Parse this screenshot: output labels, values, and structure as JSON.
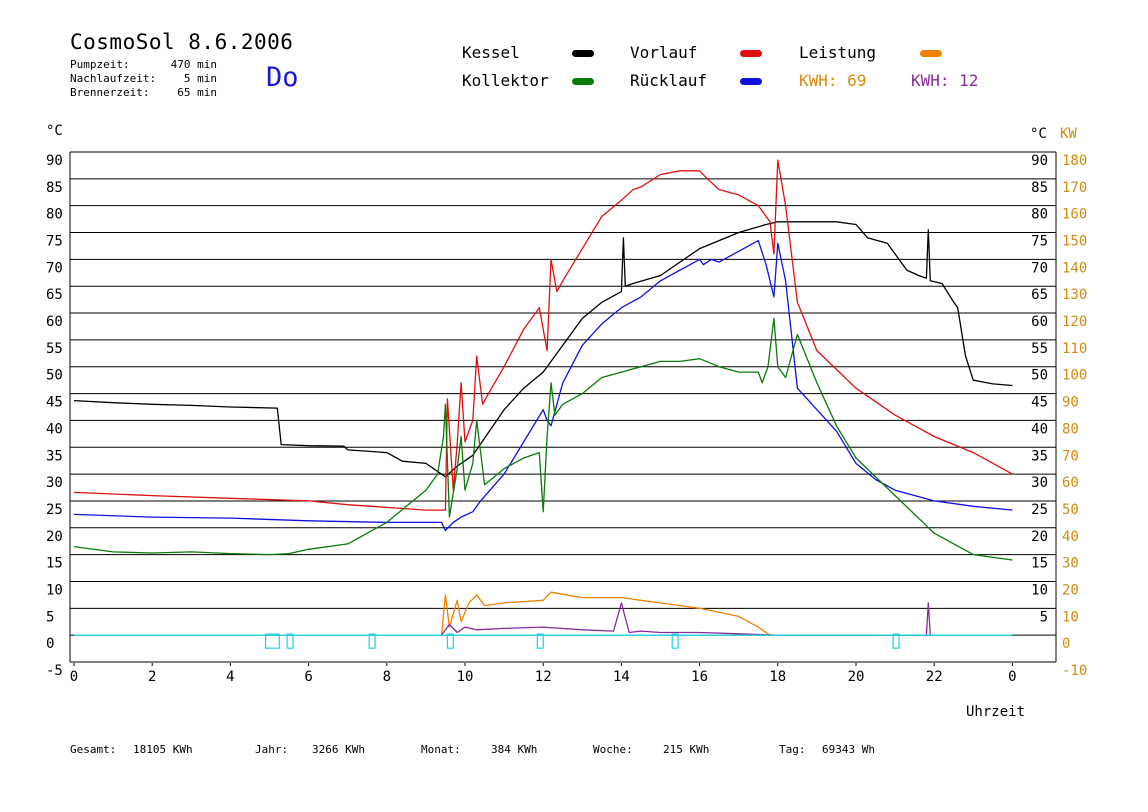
{
  "header": {
    "title": "CosmoSol 8.6.2006",
    "stats": [
      {
        "label": "Pumpzeit:",
        "value": "470 min"
      },
      {
        "label": "Nachlaufzeit:",
        "value": "5 min"
      },
      {
        "label": "Brennerzeit:",
        "value": "65 min"
      }
    ],
    "day": "Do"
  },
  "legend": {
    "kessel": {
      "label": "Kessel",
      "color": "#000000"
    },
    "kollektor": {
      "label": "Kollektor",
      "color": "#0a7a0a"
    },
    "vorlauf": {
      "label": "Vorlauf",
      "color": "#e01010"
    },
    "ruecklauf": {
      "label": "Rücklauf",
      "color": "#1010e0"
    },
    "leistung": {
      "label": "Leistung",
      "color": "#f08000"
    },
    "kwh1": {
      "label": "KWH: 69",
      "color": "#e08a10"
    },
    "kwh2": {
      "label": "KWH: 12",
      "color": "#8a2a9a"
    }
  },
  "axes": {
    "left_unit": "°C",
    "right_unit_c": "°C",
    "right_unit_kw": "KW",
    "xlabel": "Uhrzeit",
    "left_ticks": [
      "90",
      "85",
      "80",
      "75",
      "70",
      "65",
      "60",
      "55",
      "50",
      "45",
      "40",
      "35",
      "30",
      "25",
      "20",
      "15",
      "10",
      "5",
      "0",
      "-5"
    ],
    "right_c_ticks": [
      "90",
      "85",
      "80",
      "75",
      "70",
      "65",
      "60",
      "55",
      "50",
      "45",
      "40",
      "35",
      "30",
      "25",
      "20",
      "15",
      "10",
      "5"
    ],
    "right_kw_ticks": [
      "180",
      "170",
      "160",
      "150",
      "140",
      "130",
      "120",
      "110",
      "100",
      "90",
      "80",
      "70",
      "60",
      "50",
      "40",
      "30",
      "20",
      "10",
      "0",
      "-10"
    ],
    "x_ticks": [
      "0",
      "2",
      "4",
      "6",
      "8",
      "10",
      "12",
      "14",
      "16",
      "18",
      "20",
      "22",
      "0"
    ]
  },
  "footer": [
    {
      "label": "Gesamt:",
      "value": "18105 KWh"
    },
    {
      "label": "Jahr:",
      "value": "3266 KWh"
    },
    {
      "label": "Monat:",
      "value": "384 KWh"
    },
    {
      "label": "Woche:",
      "value": "215 KWh"
    },
    {
      "label": "Tag:",
      "value": "69343 Wh"
    }
  ],
  "chart_data": {
    "type": "line",
    "title": "CosmoSol 8.6.2006",
    "xlabel": "Uhrzeit",
    "ylabel": "°C",
    "xlim": [
      0,
      24
    ],
    "ylim": [
      -5,
      90
    ],
    "y2lim": [
      -10,
      180
    ],
    "grid": true,
    "legend_position": "top",
    "series": [
      {
        "name": "Kessel",
        "color": "#000000",
        "points": [
          [
            0,
            43.7
          ],
          [
            1,
            43.3
          ],
          [
            2,
            43.0
          ],
          [
            3,
            42.8
          ],
          [
            4,
            42.5
          ],
          [
            5.2,
            42.3
          ],
          [
            5.3,
            35.5
          ],
          [
            6,
            35.3
          ],
          [
            6.9,
            35.2
          ],
          [
            7,
            34.5
          ],
          [
            8,
            34
          ],
          [
            8.4,
            32.4
          ],
          [
            9,
            32
          ],
          [
            9.5,
            29.5
          ],
          [
            9.8,
            31.5
          ],
          [
            10.2,
            33.5
          ],
          [
            11,
            42
          ],
          [
            11.5,
            46
          ],
          [
            12,
            49
          ],
          [
            12.5,
            54
          ],
          [
            13,
            59
          ],
          [
            13.5,
            62
          ],
          [
            14,
            64
          ],
          [
            14.05,
            74
          ],
          [
            14.1,
            65
          ],
          [
            14.3,
            65.5
          ],
          [
            15,
            67
          ],
          [
            16,
            72
          ],
          [
            16.5,
            73.5
          ],
          [
            17,
            75
          ],
          [
            17.7,
            76.5
          ],
          [
            18,
            77
          ],
          [
            18.5,
            77
          ],
          [
            19,
            77
          ],
          [
            19.5,
            77
          ],
          [
            20,
            76.5
          ],
          [
            20.3,
            74
          ],
          [
            20.8,
            73
          ],
          [
            21,
            71
          ],
          [
            21.3,
            68
          ],
          [
            21.6,
            67
          ],
          [
            21.8,
            66.5
          ],
          [
            21.85,
            75.5
          ],
          [
            21.9,
            66
          ],
          [
            22.2,
            65.5
          ],
          [
            22.5,
            62
          ],
          [
            22.6,
            61
          ],
          [
            22.8,
            52
          ],
          [
            23,
            47.5
          ],
          [
            23.5,
            46.8
          ],
          [
            24,
            46.5
          ]
        ]
      },
      {
        "name": "Vorlauf",
        "color": "#e01010",
        "points": [
          [
            0,
            26.6
          ],
          [
            2,
            26.0
          ],
          [
            4,
            25.5
          ],
          [
            6,
            25
          ],
          [
            7,
            24.3
          ],
          [
            8,
            23.8
          ],
          [
            9,
            23.3
          ],
          [
            9.5,
            23.3
          ],
          [
            9.55,
            44
          ],
          [
            9.7,
            27
          ],
          [
            9.8,
            35.7
          ],
          [
            9.9,
            47
          ],
          [
            10,
            36
          ],
          [
            10.2,
            40
          ],
          [
            10.3,
            52
          ],
          [
            10.45,
            43
          ],
          [
            10.6,
            45
          ],
          [
            11,
            50
          ],
          [
            11.5,
            57
          ],
          [
            11.9,
            61
          ],
          [
            12.1,
            53
          ],
          [
            12.2,
            70
          ],
          [
            12.35,
            64
          ],
          [
            12.5,
            66
          ],
          [
            13,
            72
          ],
          [
            13.5,
            78
          ],
          [
            14,
            81
          ],
          [
            14.3,
            83
          ],
          [
            14.5,
            83.5
          ],
          [
            15,
            85.8
          ],
          [
            15.5,
            86.5
          ],
          [
            16,
            86.5
          ],
          [
            16.2,
            85
          ],
          [
            16.5,
            83
          ],
          [
            17,
            82
          ],
          [
            17.5,
            80
          ],
          [
            17.8,
            77
          ],
          [
            17.9,
            71
          ],
          [
            18,
            88.5
          ],
          [
            18.2,
            80
          ],
          [
            18.5,
            62
          ],
          [
            19,
            53
          ],
          [
            20,
            46
          ],
          [
            21,
            41
          ],
          [
            22,
            37
          ],
          [
            23,
            34
          ],
          [
            24,
            30
          ]
        ]
      },
      {
        "name": "Rücklauf",
        "color": "#1010e0",
        "points": [
          [
            0,
            22.5
          ],
          [
            2,
            22
          ],
          [
            4,
            21.8
          ],
          [
            6,
            21.3
          ],
          [
            8,
            21
          ],
          [
            9.4,
            21
          ],
          [
            9.5,
            19.5
          ],
          [
            9.7,
            21
          ],
          [
            9.9,
            22
          ],
          [
            10.2,
            23
          ],
          [
            10.4,
            25
          ],
          [
            11,
            30
          ],
          [
            11.5,
            36
          ],
          [
            12,
            42
          ],
          [
            12.1,
            40
          ],
          [
            12.2,
            39
          ],
          [
            12.5,
            47
          ],
          [
            13,
            54
          ],
          [
            13.5,
            58
          ],
          [
            14,
            61
          ],
          [
            14.5,
            63
          ],
          [
            15,
            66
          ],
          [
            15.5,
            68
          ],
          [
            16,
            70
          ],
          [
            16.1,
            69
          ],
          [
            16.3,
            70
          ],
          [
            16.5,
            69.5
          ],
          [
            17,
            71.5
          ],
          [
            17.5,
            73.5
          ],
          [
            17.7,
            69
          ],
          [
            17.9,
            63
          ],
          [
            18,
            73
          ],
          [
            18.2,
            66
          ],
          [
            18.5,
            46
          ],
          [
            19,
            42
          ],
          [
            19.5,
            38
          ],
          [
            20,
            32
          ],
          [
            20.5,
            29
          ],
          [
            21,
            27
          ],
          [
            22,
            25
          ],
          [
            23,
            24
          ],
          [
            24,
            23.3
          ]
        ]
      },
      {
        "name": "Kollektor",
        "color": "#0a7a0a",
        "points": [
          [
            0,
            16.5
          ],
          [
            1,
            15.5
          ],
          [
            2,
            15.3
          ],
          [
            3,
            15.5
          ],
          [
            4,
            15.2
          ],
          [
            5,
            15.0
          ],
          [
            5.5,
            15.2
          ],
          [
            6,
            16
          ],
          [
            7,
            17
          ],
          [
            7.5,
            19
          ],
          [
            8,
            21
          ],
          [
            8.5,
            24
          ],
          [
            9,
            27
          ],
          [
            9.3,
            30
          ],
          [
            9.45,
            37
          ],
          [
            9.5,
            43
          ],
          [
            9.6,
            22
          ],
          [
            9.8,
            31
          ],
          [
            9.9,
            37
          ],
          [
            10,
            27
          ],
          [
            10.2,
            32
          ],
          [
            10.3,
            40
          ],
          [
            10.5,
            28
          ],
          [
            11,
            31
          ],
          [
            11.5,
            33
          ],
          [
            11.9,
            34
          ],
          [
            12,
            23
          ],
          [
            12.1,
            37
          ],
          [
            12.2,
            47
          ],
          [
            12.3,
            41
          ],
          [
            12.5,
            43
          ],
          [
            13,
            45
          ],
          [
            13.5,
            48
          ],
          [
            14,
            49
          ],
          [
            14.5,
            50
          ],
          [
            15,
            51
          ],
          [
            15.5,
            51
          ],
          [
            16,
            51.5
          ],
          [
            16.5,
            50
          ],
          [
            17,
            49
          ],
          [
            17.5,
            49
          ],
          [
            17.6,
            47
          ],
          [
            17.75,
            50
          ],
          [
            17.9,
            59
          ],
          [
            18,
            50
          ],
          [
            18.2,
            48
          ],
          [
            18.5,
            56
          ],
          [
            19,
            47
          ],
          [
            19.5,
            39
          ],
          [
            20,
            33
          ],
          [
            21,
            26
          ],
          [
            22,
            19
          ],
          [
            23,
            15
          ],
          [
            24,
            14
          ]
        ]
      },
      {
        "name": "Leistung",
        "color": "#f08000",
        "axis": "right",
        "points": [
          [
            9.4,
            0
          ],
          [
            9.5,
            15
          ],
          [
            9.6,
            3
          ],
          [
            9.8,
            13
          ],
          [
            9.9,
            5
          ],
          [
            10.1,
            12
          ],
          [
            10.3,
            15
          ],
          [
            10.5,
            11
          ],
          [
            11,
            12
          ],
          [
            12,
            13
          ],
          [
            12.2,
            16
          ],
          [
            13,
            14
          ],
          [
            14,
            14
          ],
          [
            14.5,
            13
          ],
          [
            15,
            12
          ],
          [
            16,
            10
          ],
          [
            17,
            7
          ],
          [
            17.5,
            3
          ],
          [
            17.8,
            0
          ]
        ]
      },
      {
        "name": "",
        "color": "#8a2a9a",
        "axis": "right",
        "points": [
          [
            9.4,
            0
          ],
          [
            9.6,
            4
          ],
          [
            9.8,
            1
          ],
          [
            10,
            3
          ],
          [
            10.3,
            2
          ],
          [
            11,
            2.5
          ],
          [
            12,
            3
          ],
          [
            13,
            2
          ],
          [
            13.8,
            1.5
          ],
          [
            14,
            12
          ],
          [
            14.2,
            1
          ],
          [
            14.5,
            1.5
          ],
          [
            15,
            1
          ],
          [
            16,
            1
          ],
          [
            17,
            0.5
          ],
          [
            18,
            0
          ],
          [
            21.8,
            0
          ],
          [
            21.85,
            12
          ],
          [
            21.9,
            0
          ]
        ]
      },
      {
        "name": "",
        "color": "#20d0e0",
        "axis": "right",
        "points": [
          [
            0,
            0
          ],
          [
            24,
            0
          ]
        ]
      }
    ]
  }
}
